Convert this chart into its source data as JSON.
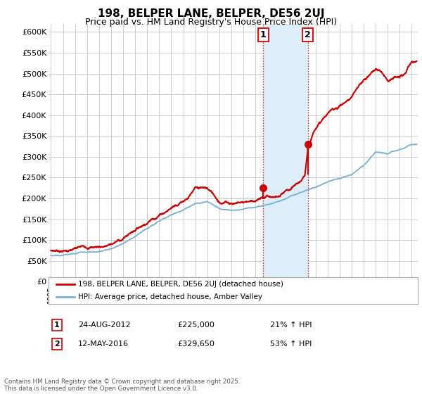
{
  "title": "198, BELPER LANE, BELPER, DE56 2UJ",
  "subtitle": "Price paid vs. HM Land Registry's House Price Index (HPI)",
  "ylim": [
    0,
    620000
  ],
  "yticks": [
    0,
    50000,
    100000,
    150000,
    200000,
    250000,
    300000,
    350000,
    400000,
    450000,
    500000,
    550000,
    600000
  ],
  "xlim_start": 1994.8,
  "xlim_end": 2025.5,
  "xtick_years": [
    1995,
    1996,
    1997,
    1998,
    1999,
    2000,
    2001,
    2002,
    2003,
    2004,
    2005,
    2006,
    2007,
    2008,
    2009,
    2010,
    2011,
    2012,
    2013,
    2014,
    2015,
    2016,
    2017,
    2018,
    2019,
    2020,
    2021,
    2022,
    2023,
    2024,
    2025
  ],
  "transaction1_x": 2012.65,
  "transaction1_y": 225000,
  "transaction1_date": "24-AUG-2012",
  "transaction1_price": "£225,000",
  "transaction1_hpi": "21% ↑ HPI",
  "transaction2_x": 2016.36,
  "transaction2_y": 329650,
  "transaction2_date": "12-MAY-2016",
  "transaction2_price": "£329,650",
  "transaction2_hpi": "53% ↑ HPI",
  "red_line_color": "#cc0000",
  "blue_line_color": "#7ab0d4",
  "shade_color": "#ddeef8",
  "grid_color": "#cccccc",
  "background_color": "#ffffff",
  "legend_line1": "198, BELPER LANE, BELPER, DE56 2UJ (detached house)",
  "legend_line2": "HPI: Average price, detached house, Amber Valley",
  "footnote": "Contains HM Land Registry data © Crown copyright and database right 2025.\nThis data is licensed under the Open Government Licence v3.0.",
  "title_fontsize": 11,
  "subtitle_fontsize": 9,
  "axis_fontsize": 8
}
